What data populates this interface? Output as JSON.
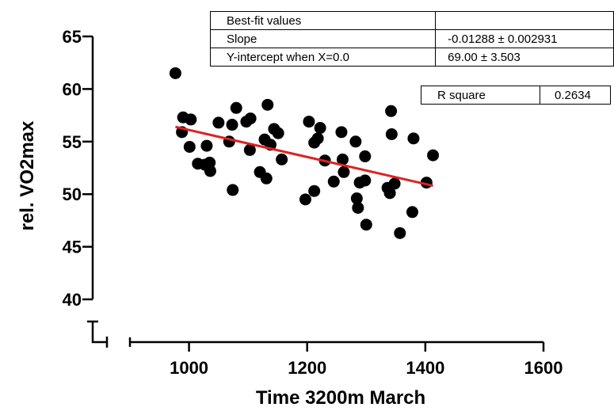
{
  "chart_data": {
    "type": "scatter",
    "xlabel": "Time 3200m March",
    "ylabel": "rel. VO2max",
    "xlim": [
      900,
      1600
    ],
    "ylim": [
      40,
      65
    ],
    "x_ticks": [
      1000,
      1200,
      1400,
      1600
    ],
    "y_ticks": [
      40,
      45,
      50,
      55,
      60,
      65
    ],
    "axis_break": true,
    "grid": false,
    "colors": {
      "points": "#000000",
      "fit_line": "#dd2222",
      "axis": "#000000"
    },
    "points": [
      {
        "x": 977,
        "y": 61.5
      },
      {
        "x": 990,
        "y": 57.3
      },
      {
        "x": 988,
        "y": 55.9
      },
      {
        "x": 1003,
        "y": 57.1
      },
      {
        "x": 1001,
        "y": 54.5
      },
      {
        "x": 1015,
        "y": 52.9
      },
      {
        "x": 1030,
        "y": 54.6
      },
      {
        "x": 1027,
        "y": 52.8
      },
      {
        "x": 1035,
        "y": 53.0
      },
      {
        "x": 1036,
        "y": 52.2
      },
      {
        "x": 1050,
        "y": 56.8
      },
      {
        "x": 1068,
        "y": 55.0
      },
      {
        "x": 1073,
        "y": 56.6
      },
      {
        "x": 1074,
        "y": 50.4
      },
      {
        "x": 1080,
        "y": 58.2
      },
      {
        "x": 1097,
        "y": 56.9
      },
      {
        "x": 1104,
        "y": 57.2
      },
      {
        "x": 1103,
        "y": 54.2
      },
      {
        "x": 1120,
        "y": 52.1
      },
      {
        "x": 1128,
        "y": 55.2
      },
      {
        "x": 1133,
        "y": 58.5
      },
      {
        "x": 1138,
        "y": 54.7
      },
      {
        "x": 1144,
        "y": 56.2
      },
      {
        "x": 1131,
        "y": 51.5
      },
      {
        "x": 1151,
        "y": 55.8
      },
      {
        "x": 1157,
        "y": 53.3
      },
      {
        "x": 1197,
        "y": 49.5
      },
      {
        "x": 1203,
        "y": 56.9
      },
      {
        "x": 1212,
        "y": 54.9
      },
      {
        "x": 1212,
        "y": 50.3
      },
      {
        "x": 1222,
        "y": 56.3
      },
      {
        "x": 1218,
        "y": 55.3
      },
      {
        "x": 1230,
        "y": 53.2
      },
      {
        "x": 1245,
        "y": 51.2
      },
      {
        "x": 1258,
        "y": 55.9
      },
      {
        "x": 1260,
        "y": 53.3
      },
      {
        "x": 1262,
        "y": 52.1
      },
      {
        "x": 1282,
        "y": 55.0
      },
      {
        "x": 1284,
        "y": 49.6
      },
      {
        "x": 1286,
        "y": 48.7
      },
      {
        "x": 1289,
        "y": 51.1
      },
      {
        "x": 1298,
        "y": 53.6
      },
      {
        "x": 1300,
        "y": 47.1
      },
      {
        "x": 1298,
        "y": 51.3
      },
      {
        "x": 1336,
        "y": 50.6
      },
      {
        "x": 1340,
        "y": 50.1
      },
      {
        "x": 1343,
        "y": 55.7
      },
      {
        "x": 1342,
        "y": 57.9
      },
      {
        "x": 1348,
        "y": 51.0
      },
      {
        "x": 1357,
        "y": 46.3
      },
      {
        "x": 1378,
        "y": 48.3
      },
      {
        "x": 1380,
        "y": 55.3
      },
      {
        "x": 1402,
        "y": 51.1
      },
      {
        "x": 1413,
        "y": 53.7
      }
    ],
    "fit_line": {
      "x": [
        977,
        1413
      ],
      "y": [
        56.4,
        50.8
      ]
    }
  },
  "fit_table": {
    "header": "Best-fit values",
    "rows": [
      {
        "label": "Slope",
        "value": "-0.01288 ± 0.002931"
      },
      {
        "label": "Y-intercept when X=0.0",
        "value": "69.00 ± 3.503"
      }
    ],
    "r_square": {
      "label": "R square",
      "value": "0.2634"
    }
  }
}
